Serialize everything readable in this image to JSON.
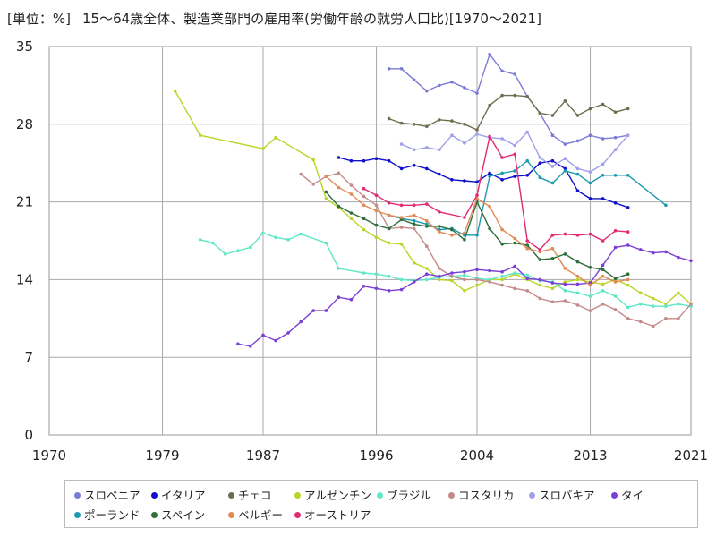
{
  "header": {
    "unit_label": "[単位：%]",
    "title": "15～64歳全体、製造業部門の雇用率(労働年齢の就労人口比)[1970～2021]"
  },
  "chart_data": {
    "type": "line",
    "xlim": [
      1970,
      2021
    ],
    "ylim": [
      0,
      35
    ],
    "xticks": [
      "1970",
      "1979",
      "1987",
      "1996",
      "2004",
      "2013",
      "2021"
    ],
    "xtick_values": [
      1970,
      1979,
      1987,
      1996,
      2004,
      2013,
      2021
    ],
    "yticks": [
      "0",
      "7",
      "14",
      "21",
      "28",
      "35"
    ],
    "ytick_values": [
      0,
      7,
      14,
      21,
      28,
      35
    ],
    "grid": true,
    "legend_position": "bottom",
    "series": [
      {
        "name": "スロベニア",
        "color": "#7b7bd6",
        "x": [
          1997,
          1998,
          1999,
          2000,
          2001,
          2002,
          2003,
          2004,
          2005,
          2006,
          2007,
          2008,
          2009,
          2010,
          2011,
          2012,
          2013,
          2014,
          2015,
          2016
        ],
        "y": [
          33.0,
          33.0,
          32.0,
          31.0,
          31.5,
          31.8,
          31.3,
          30.8,
          34.3,
          32.8,
          32.5,
          30.5,
          29.0,
          27.0,
          26.2,
          26.5,
          27.0,
          26.7,
          26.8,
          27.0
        ]
      },
      {
        "name": "イタリア",
        "color": "#1010cc",
        "x": [
          1993,
          1994,
          1995,
          1996,
          1997,
          1998,
          1999,
          2000,
          2001,
          2002,
          2003,
          2004,
          2005,
          2006,
          2007,
          2008,
          2009,
          2010,
          2011,
          2012,
          2013,
          2014,
          2015,
          2016
        ],
        "y": [
          25.0,
          24.7,
          24.7,
          24.9,
          24.7,
          24.0,
          24.3,
          24.0,
          23.5,
          23.0,
          22.9,
          22.8,
          23.6,
          23.0,
          23.3,
          23.4,
          24.5,
          24.7,
          24.0,
          22.0,
          21.3,
          21.3,
          20.9,
          20.5
        ]
      },
      {
        "name": "チェコ",
        "color": "#6e6e4e",
        "x": [
          1997,
          1998,
          1999,
          2000,
          2001,
          2002,
          2003,
          2004,
          2005,
          2006,
          2007,
          2008,
          2009,
          2010,
          2011,
          2012,
          2013,
          2014,
          2015,
          2016
        ],
        "y": [
          28.5,
          28.1,
          28.0,
          27.8,
          28.4,
          28.3,
          28.0,
          27.5,
          29.7,
          30.6,
          30.6,
          30.5,
          29.0,
          28.8,
          30.1,
          28.8,
          29.4,
          29.8,
          29.1,
          29.4
        ]
      },
      {
        "name": "アルゼンチン",
        "color": "#bcd42a",
        "x": [
          1980,
          1982,
          1987,
          1988,
          1991,
          1992,
          1993,
          1994,
          1995,
          1996,
          1997,
          1998,
          1999,
          2000,
          2001,
          2002,
          2003,
          2004,
          2005,
          2006,
          2007,
          2008,
          2009,
          2010,
          2011,
          2012,
          2013,
          2014,
          2015,
          2016,
          2017,
          2018,
          2019,
          2020,
          2021
        ],
        "y": [
          31.0,
          27.0,
          25.8,
          26.8,
          24.8,
          21.3,
          20.5,
          19.5,
          18.5,
          17.8,
          17.3,
          17.2,
          15.5,
          15.0,
          14.0,
          13.9,
          13.0,
          13.5,
          14.0,
          14.0,
          14.5,
          14.0,
          13.5,
          13.2,
          13.8,
          14.0,
          13.8,
          13.6,
          14.0,
          13.5,
          12.8,
          12.3,
          11.8,
          12.8,
          11.8
        ]
      },
      {
        "name": "ブラジル",
        "color": "#5ee8c6",
        "x": [
          1982,
          1983,
          1984,
          1985,
          1986,
          1987,
          1988,
          1989,
          1990,
          1992,
          1993,
          1995,
          1996,
          1997,
          1998,
          1999,
          2000,
          2001,
          2002,
          2003,
          2004,
          2005,
          2006,
          2007,
          2008,
          2009,
          2010,
          2011,
          2012,
          2013,
          2014,
          2015,
          2016,
          2017,
          2018,
          2019,
          2020,
          2021
        ],
        "y": [
          17.6,
          17.3,
          16.3,
          16.6,
          16.9,
          18.2,
          17.8,
          17.6,
          18.1,
          17.3,
          15.0,
          14.6,
          14.5,
          14.3,
          14.0,
          13.9,
          14.0,
          14.2,
          14.3,
          14.4,
          14.1,
          14.0,
          14.3,
          14.6,
          14.4,
          13.9,
          13.8,
          13.0,
          12.8,
          12.5,
          13.0,
          12.5,
          11.5,
          11.8,
          11.6,
          11.6,
          11.8,
          11.6
        ]
      },
      {
        "name": "コスタリカ",
        "color": "#c48a8a",
        "x": [
          1990,
          1991,
          1992,
          1993,
          1994,
          1995,
          1996,
          1997,
          1998,
          1999,
          2000,
          2001,
          2002,
          2003,
          2004,
          2005,
          2006,
          2007,
          2008,
          2009,
          2010,
          2011,
          2012,
          2013,
          2014,
          2015,
          2016,
          2017,
          2018,
          2019,
          2020,
          2021
        ],
        "y": [
          23.5,
          22.6,
          23.3,
          23.6,
          22.5,
          21.5,
          20.7,
          18.6,
          18.7,
          18.6,
          17.0,
          15.0,
          14.3,
          14.0,
          14.0,
          13.8,
          13.5,
          13.2,
          13.0,
          12.3,
          12.0,
          12.1,
          11.7,
          11.2,
          11.8,
          11.3,
          10.5,
          10.2,
          9.8,
          10.5,
          10.5,
          11.8
        ]
      },
      {
        "name": "スロバキア",
        "color": "#a0a0ea",
        "x": [
          1998,
          1999,
          2000,
          2001,
          2002,
          2003,
          2004,
          2005,
          2006,
          2007,
          2008,
          2009,
          2010,
          2011,
          2012,
          2013,
          2014,
          2015,
          2016
        ],
        "y": [
          26.2,
          25.7,
          25.9,
          25.7,
          27.0,
          26.3,
          27.1,
          26.8,
          26.7,
          26.1,
          27.3,
          25.0,
          24.2,
          24.9,
          24.0,
          23.7,
          24.4,
          25.7,
          27.0
        ]
      },
      {
        "name": "タイ",
        "color": "#7b3fd6",
        "x": [
          1985,
          1986,
          1987,
          1988,
          1989,
          1990,
          1991,
          1992,
          1993,
          1994,
          1995,
          1996,
          1997,
          1998,
          1999,
          2000,
          2001,
          2002,
          2003,
          2004,
          2005,
          2006,
          2007,
          2008,
          2009,
          2010,
          2011,
          2012,
          2013,
          2014,
          2015,
          2016,
          2017,
          2018,
          2019,
          2020,
          2021
        ],
        "y": [
          8.2,
          8.0,
          9.0,
          8.5,
          9.2,
          10.2,
          11.2,
          11.2,
          12.4,
          12.2,
          13.4,
          13.2,
          13.0,
          13.1,
          13.8,
          14.5,
          14.3,
          14.6,
          14.7,
          14.9,
          14.8,
          14.7,
          15.2,
          14.1,
          14.0,
          13.7,
          13.6,
          13.6,
          13.7,
          15.3,
          16.9,
          17.1,
          16.7,
          16.4,
          16.5,
          16.0,
          15.7
        ]
      },
      {
        "name": "ポーランド",
        "color": "#1c9ab0",
        "x": [
          1997,
          1998,
          1999,
          2000,
          2001,
          2002,
          2003,
          2004,
          2005,
          2006,
          2007,
          2008,
          2009,
          2010,
          2011,
          2012,
          2013,
          2014,
          2015,
          2016,
          2019
        ],
        "y": [
          19.8,
          19.5,
          19.3,
          19.0,
          18.5,
          18.6,
          18.0,
          18.0,
          23.3,
          23.6,
          23.8,
          24.7,
          23.2,
          22.7,
          23.8,
          23.5,
          22.7,
          23.4,
          23.4,
          23.4,
          20.7
        ]
      },
      {
        "name": "スペイン",
        "color": "#2e6e3a",
        "x": [
          1992,
          1993,
          1994,
          1995,
          1996,
          1997,
          1998,
          1999,
          2000,
          2001,
          2002,
          2003,
          2004,
          2005,
          2006,
          2007,
          2008,
          2009,
          2010,
          2011,
          2012,
          2013,
          2014,
          2015,
          2016
        ],
        "y": [
          21.9,
          20.6,
          20.0,
          19.5,
          18.9,
          18.6,
          19.4,
          19.0,
          18.8,
          18.8,
          18.5,
          17.6,
          21.0,
          18.6,
          17.2,
          17.3,
          17.1,
          15.8,
          15.9,
          16.3,
          15.6,
          15.1,
          14.9,
          14.1,
          14.5
        ]
      },
      {
        "name": "ベルギー",
        "color": "#e08a56",
        "x": [
          1992,
          1993,
          1994,
          1995,
          1996,
          1997,
          1998,
          1999,
          2000,
          2001,
          2002,
          2003,
          2004,
          2005,
          2006,
          2007,
          2008,
          2009,
          2010,
          2011,
          2012,
          2013,
          2014,
          2015,
          2016
        ],
        "y": [
          23.3,
          22.3,
          21.7,
          20.7,
          20.2,
          19.8,
          19.6,
          19.8,
          19.3,
          18.3,
          18.0,
          18.2,
          21.3,
          20.6,
          18.5,
          17.7,
          16.8,
          16.5,
          16.8,
          15.0,
          14.3,
          13.5,
          14.3,
          13.8,
          14.0
        ]
      },
      {
        "name": "オーストリア",
        "color": "#e02a72",
        "x": [
          1995,
          1996,
          1997,
          1998,
          1999,
          2000,
          2001,
          2003,
          2004,
          2005,
          2006,
          2007,
          2008,
          2009,
          2010,
          2011,
          2012,
          2013,
          2014,
          2015,
          2016
        ],
        "y": [
          22.2,
          21.6,
          20.9,
          20.7,
          20.7,
          20.8,
          20.1,
          19.6,
          21.6,
          26.9,
          25.0,
          25.3,
          17.5,
          16.7,
          18.0,
          18.1,
          18.0,
          18.1,
          17.5,
          18.4,
          18.3
        ]
      }
    ]
  }
}
